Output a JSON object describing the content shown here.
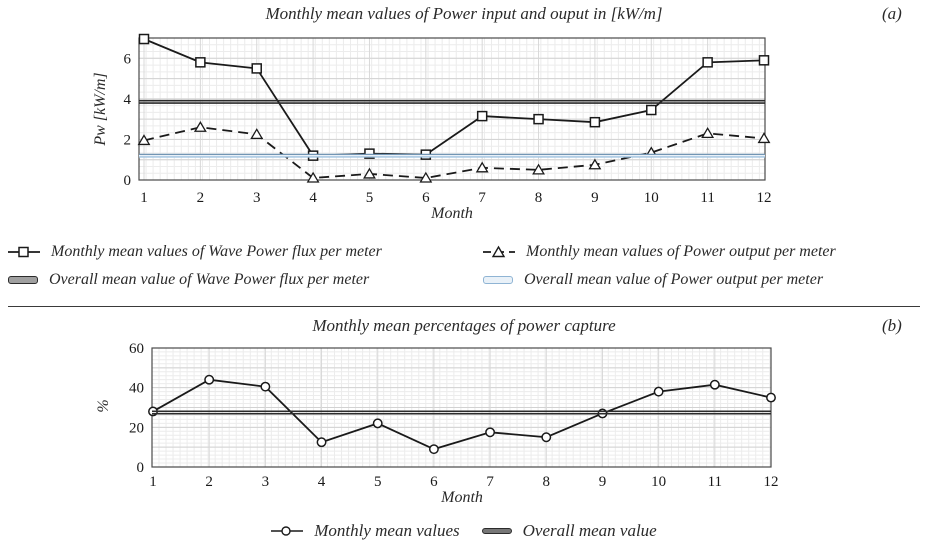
{
  "panel_a": {
    "label": "(a)"
  },
  "panel_b": {
    "label": "(b)"
  },
  "chart_data": [
    {
      "type": "line",
      "title": "Monthly mean values of Power input and ouput in [kW/m]",
      "xlabel": "Month",
      "ylabel": "Pw [kW/m]",
      "x": [
        1,
        2,
        3,
        4,
        5,
        6,
        7,
        8,
        9,
        10,
        11,
        12
      ],
      "ylim": [
        0,
        7
      ],
      "yticks": [
        0,
        2,
        4,
        6
      ],
      "grid": "fine",
      "legend_position": "below",
      "series": [
        {
          "name": "Monthly mean values of Wave  Power flux per meter",
          "kind": "line",
          "marker": "square",
          "dash": "solid",
          "color": "#1a1a1a",
          "values": [
            6.95,
            5.8,
            5.5,
            1.2,
            1.3,
            1.25,
            3.15,
            3.0,
            2.85,
            3.45,
            5.8,
            5.9
          ]
        },
        {
          "name": "Monthly mean values of Power output  per meter",
          "kind": "line",
          "marker": "triangle",
          "dash": "dashed",
          "color": "#1a1a1a",
          "values": [
            1.95,
            2.6,
            2.25,
            0.1,
            0.3,
            0.1,
            0.6,
            0.5,
            0.75,
            1.35,
            2.3,
            2.05
          ]
        },
        {
          "name": "Overall mean value of Wave Power flux per meter",
          "kind": "hline",
          "style": "double-dark",
          "color": "#2b2b2b",
          "value": 3.85
        },
        {
          "name": "Overall mean value of Power output per meter",
          "kind": "hline",
          "style": "double-blue",
          "color": "#9dc3e6",
          "value": 1.2
        }
      ]
    },
    {
      "type": "line",
      "title": "Monthly mean percentages of power capture",
      "xlabel": "Month",
      "ylabel": "%",
      "x": [
        1,
        2,
        3,
        4,
        5,
        6,
        7,
        8,
        9,
        10,
        11,
        12
      ],
      "ylim": [
        0,
        60
      ],
      "yticks": [
        0,
        20,
        40,
        60
      ],
      "grid": "fine",
      "legend_position": "below",
      "series": [
        {
          "name": "Monthly mean values",
          "kind": "line",
          "marker": "circle",
          "dash": "solid",
          "color": "#1a1a1a",
          "values": [
            28,
            44,
            40.5,
            12.5,
            22,
            9,
            17.5,
            15,
            27,
            38,
            41.5,
            35
          ]
        },
        {
          "name": "Overall mean value",
          "kind": "hline",
          "style": "double-dark",
          "color": "#2b2b2b",
          "value": 27.5
        }
      ]
    }
  ]
}
